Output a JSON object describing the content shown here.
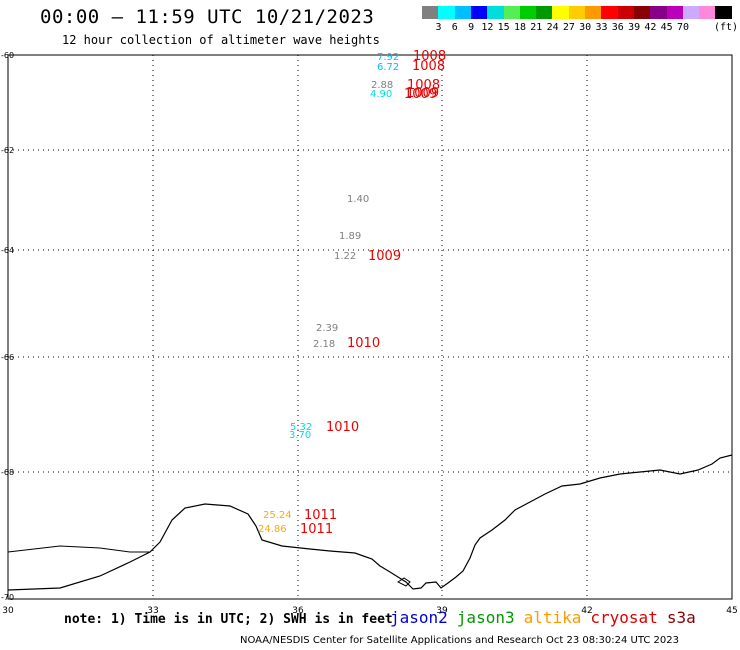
{
  "header": {
    "title": "00:00 – 11:59 UTC 10/21/2023",
    "subtitle": "12 hour collection of altimeter wave heights"
  },
  "legend": {
    "colors": [
      "#808080",
      "#00ffff",
      "#00bfff",
      "#0000ff",
      "#00dddd",
      "#55ee55",
      "#00cc00",
      "#009900",
      "#ffff00",
      "#ffcc00",
      "#ff9900",
      "#ff0000",
      "#cc0000",
      "#880000",
      "#880088",
      "#bb00bb",
      "#ccaaff",
      "#ff88dd",
      "#000000"
    ],
    "labels": [
      "3",
      "6",
      "9",
      "12",
      "15",
      "18",
      "21",
      "24",
      "27",
      "30",
      "33",
      "36",
      "39",
      "42",
      "45",
      "70"
    ],
    "unit": "(ft)"
  },
  "axes": {
    "y_labels": [
      "-60",
      "-62",
      "-64",
      "-66",
      "-68",
      "-70"
    ],
    "x_labels": [
      "30",
      "33",
      "36",
      "39",
      "42",
      "45"
    ]
  },
  "observations": [
    {
      "value": "7.92",
      "color": "#00bfff"
    },
    {
      "value": "6.72",
      "color": "#00bfff"
    },
    {
      "value": "2.88",
      "color": "#808080"
    },
    {
      "value": "4.90",
      "color": "#00dddd"
    },
    {
      "value": "1.40",
      "color": "#808080"
    },
    {
      "value": "1.89",
      "color": "#808080"
    },
    {
      "value": "1.22",
      "color": "#808080"
    },
    {
      "value": "2.39",
      "color": "#808080"
    },
    {
      "value": "2.18",
      "color": "#808080"
    },
    {
      "value": "5.32",
      "color": "#00dddd"
    },
    {
      "value": "3.70",
      "color": "#00dddd"
    },
    {
      "value": "25.24",
      "color": "#ffaa00"
    },
    {
      "value": "24.86",
      "color": "#ffaa00"
    }
  ],
  "pressures": [
    {
      "value": "1008"
    },
    {
      "value": "1008"
    },
    {
      "value": "1008"
    },
    {
      "value": "1009"
    },
    {
      "value": "1009"
    },
    {
      "value": "1009"
    },
    {
      "value": "1010"
    },
    {
      "value": "1010"
    },
    {
      "value": "1011"
    },
    {
      "value": "1011"
    }
  ],
  "footer": {
    "note": "note: 1) Time is in UTC; 2) SWH is in feet",
    "satellites": [
      {
        "name": "jason2",
        "color": "#0000dd"
      },
      {
        "name": "jason3",
        "color": "#009900"
      },
      {
        "name": "altika",
        "color": "#ff9900"
      },
      {
        "name": "cryosat",
        "color": "#dd0000"
      },
      {
        "name": "s3a",
        "color": "#880000"
      }
    ],
    "credit": "NOAA/NESDIS Center for Satellite Applications and Research    Oct 23 08:30:24 UTC 2023"
  }
}
